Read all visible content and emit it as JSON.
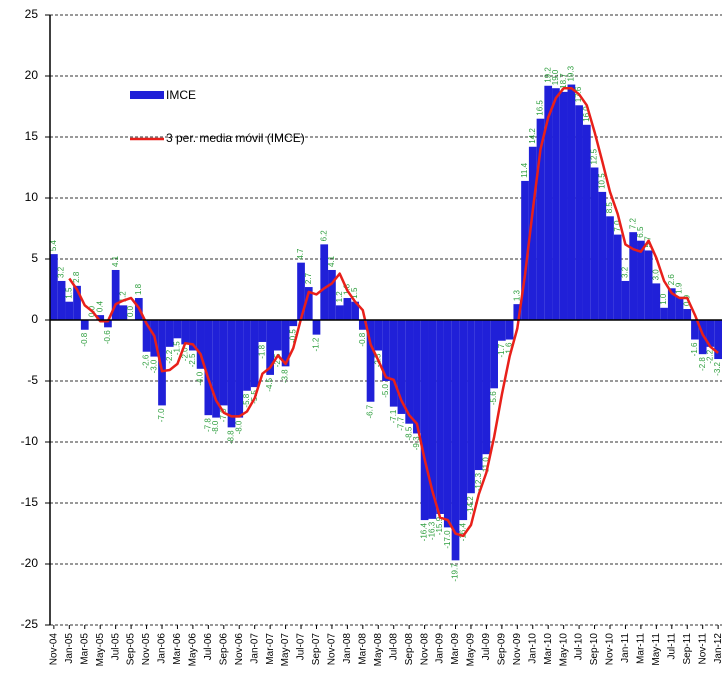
{
  "chart_data": {
    "type": "bar",
    "categories": [
      "Nov-04",
      null,
      "Jan-05",
      null,
      "Mar-05",
      null,
      "May-05",
      null,
      "Jul-05",
      null,
      "Sep-05",
      null,
      "Nov-05",
      null,
      "Jan-06",
      null,
      "Mar-06",
      null,
      "May-06",
      null,
      "Jul-06",
      null,
      "Sep-06",
      null,
      "Nov-06",
      null,
      "Jan-07",
      null,
      "Mar-07",
      null,
      "May-07",
      null,
      "Jul-07",
      null,
      "Sep-07",
      null,
      "Nov-07",
      null,
      "Jan-08",
      null,
      "Mar-08",
      null,
      "May-08",
      null,
      "Jul-08",
      null,
      "Sep-08",
      null,
      "Nov-08",
      null,
      "Jan-09",
      null,
      "Mar-09",
      null,
      "May-09",
      null,
      "Jul-09",
      null,
      "Sep-09",
      null,
      "Nov-09",
      null,
      "Jan-10",
      null,
      "Mar-10",
      null,
      "May-10",
      null,
      "Jul-10",
      null,
      "Sep-10",
      null,
      "Nov-10",
      null,
      "Jan-11",
      null,
      "Mar-11",
      null,
      "May-11",
      null,
      "Jul-11",
      null,
      "Sep-11",
      null,
      "Nov-11",
      null,
      "Jan-12"
    ],
    "series": [
      {
        "name": "IMCE",
        "type": "bar",
        "color": "#2020d8",
        "values": [
          5.4,
          3.2,
          1.5,
          2.8,
          -0.8,
          0.0,
          0.4,
          -0.6,
          4.1,
          1.2,
          0.0,
          1.8,
          -2.6,
          -3.0,
          -7.0,
          -2.2,
          -1.5,
          -2.0,
          -2.5,
          -4.0,
          -7.8,
          -8.0,
          -7.0,
          -8.8,
          -8.0,
          -5.8,
          -5.5,
          -1.8,
          -4.5,
          -2.5,
          -3.8,
          -0.5,
          4.7,
          2.7,
          -1.2,
          6.2,
          4.1,
          1.2,
          1.8,
          1.5,
          -0.8,
          -6.7,
          -2.5,
          -5.0,
          -7.1,
          -7.7,
          -8.5,
          -9.3,
          -16.4,
          -16.3,
          -15.9,
          -17.0,
          -19.7,
          -16.4,
          -14.2,
          -12.3,
          -11.0,
          -5.6,
          -1.7,
          -1.6,
          1.3,
          11.4,
          14.2,
          16.5,
          19.2,
          19.0,
          18.7,
          19.3,
          17.6,
          16.0,
          12.5,
          10.5,
          8.5,
          7.0,
          3.2,
          7.2,
          6.5,
          5.7,
          3.0,
          1.0,
          2.6,
          1.9,
          0.9,
          -1.6,
          -2.8,
          -2.2,
          -3.2
        ],
        "value_labels": [
          "5.4",
          "3.2",
          "1.5",
          "2.8",
          "-0.8",
          "0.0",
          "0.4",
          "-0.6",
          "4.1",
          "1.2",
          "0.0",
          "1.8",
          "-2.6",
          "-3.0",
          "-7.0",
          "-2.2",
          "-1.5",
          "-2.0",
          "-2.5",
          "-4.0",
          "-7.8",
          "-8.0",
          "-7.0",
          "-8.8",
          "-8.0",
          "-5.8",
          "-5.5",
          "-1.8",
          "-4.5",
          "-2.5",
          "-3.8",
          "-0.5",
          "4.7",
          "2.7",
          "-1.2",
          "6.2",
          "4.1",
          "1.2",
          "1.8",
          "1.5",
          "-0.8",
          "-6.7",
          "-2.5",
          "-5.0",
          "-7.1",
          "-7.7",
          "-8.5",
          "-9.3",
          "-16.4",
          "-16.3",
          "-15.9",
          "-17.0",
          "-19.7",
          "-16.4",
          "-14.2",
          "-12.3",
          "-11.0",
          "-5.6",
          "-1.7",
          "-1.6",
          "1.3",
          "11.4",
          "14.2",
          "16.5",
          "19.2",
          "19.0",
          "18.7",
          "19.3",
          "17.6",
          "16.0",
          "12.5",
          "10.5",
          "8.5",
          "7.0",
          "3.2",
          "7.2",
          "6.5",
          "5.7",
          "3.0",
          "1.0",
          "2.6",
          "1.9",
          "0.9",
          "-1.6",
          "-2.8",
          "-2.2",
          "-3.2"
        ]
      },
      {
        "name": "3 per. media móvil (IMCE)",
        "type": "line",
        "color": "#e8201a",
        "values": [
          null,
          null,
          3.4,
          2.5,
          1.2,
          0.7,
          -0.1,
          -0.1,
          1.3,
          1.6,
          1.8,
          1.0,
          -0.3,
          -1.3,
          -4.2,
          -4.1,
          -3.6,
          -1.9,
          -2.0,
          -2.8,
          -4.8,
          -6.6,
          -7.6,
          -7.9,
          -7.9,
          -7.5,
          -6.4,
          -4.4,
          -3.9,
          -2.9,
          -3.6,
          -2.3,
          0.1,
          2.3,
          2.1,
          2.6,
          3.0,
          3.8,
          2.4,
          1.5,
          0.8,
          -2.0,
          -3.3,
          -4.7,
          -4.9,
          -6.6,
          -7.8,
          -8.5,
          -11.4,
          -14.0,
          -16.2,
          -16.4,
          -17.5,
          -17.7,
          -16.8,
          -14.3,
          -12.5,
          -9.6,
          -6.1,
          -3.0,
          -0.7,
          3.7,
          9.0,
          14.0,
          16.6,
          18.2,
          19.0,
          19.0,
          18.5,
          17.6,
          15.4,
          13.0,
          10.5,
          8.7,
          6.2,
          5.8,
          5.6,
          6.5,
          5.1,
          3.2,
          2.2,
          1.8,
          1.8,
          0.4,
          -1.2,
          -2.2,
          -2.7
        ]
      }
    ],
    "ylim": [
      -25,
      25
    ],
    "yticks": [
      -25,
      -20,
      -15,
      -10,
      -5,
      0,
      5,
      10,
      15,
      20,
      25
    ],
    "grid": true
  }
}
